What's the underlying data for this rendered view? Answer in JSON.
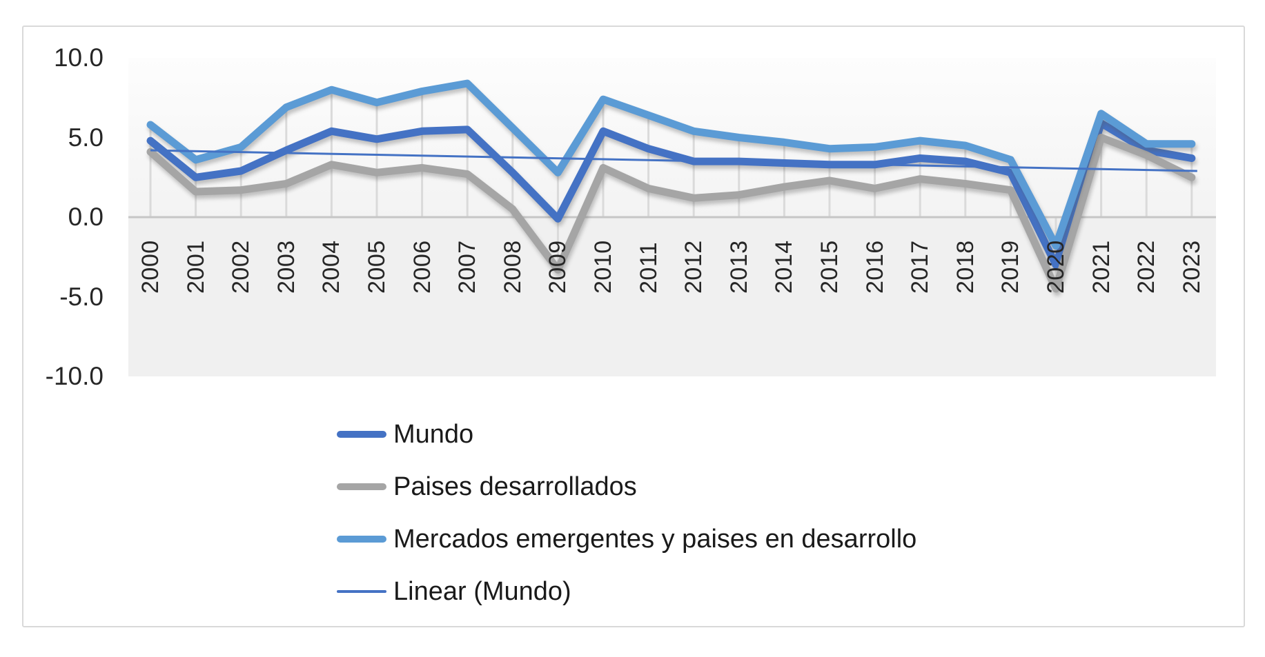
{
  "chart_data": {
    "type": "line",
    "title": "",
    "x": [
      2000,
      2001,
      2002,
      2003,
      2004,
      2005,
      2006,
      2007,
      2008,
      2009,
      2010,
      2011,
      2012,
      2013,
      2014,
      2015,
      2016,
      2017,
      2018,
      2019,
      2020,
      2021,
      2022,
      2023
    ],
    "ylim": [
      -10.0,
      10.0
    ],
    "yticks": [
      {
        "value": 10.0,
        "label": "10.0"
      },
      {
        "value": 5.0,
        "label": "5.0"
      },
      {
        "value": 0.0,
        "label": "0.0"
      },
      {
        "value": -5.0,
        "label": "-5.0"
      },
      {
        "value": -10.0,
        "label": "-10.0"
      }
    ],
    "grid": "vertical-drop-lines",
    "legend_position": "bottom-left",
    "series": [
      {
        "name": "Mundo",
        "color": "#4472C4",
        "line_width": 11,
        "values": [
          4.8,
          2.5,
          2.9,
          4.2,
          5.4,
          4.9,
          5.4,
          5.5,
          2.8,
          -0.1,
          5.4,
          4.3,
          3.5,
          3.5,
          3.4,
          3.3,
          3.3,
          3.7,
          3.5,
          2.8,
          -3.0,
          5.9,
          4.2,
          3.7
        ]
      },
      {
        "name": "Paises desarrollados",
        "color": "#A5A5A5",
        "line_width": 11,
        "values": [
          4.1,
          1.6,
          1.7,
          2.1,
          3.3,
          2.8,
          3.1,
          2.7,
          0.5,
          -3.3,
          3.1,
          1.8,
          1.2,
          1.4,
          1.9,
          2.3,
          1.8,
          2.4,
          2.1,
          1.7,
          -4.5,
          5.0,
          3.9,
          2.5
        ]
      },
      {
        "name": "Mercados emergentes y paises en desarrollo",
        "color": "#5B9BD5",
        "line_width": 11,
        "values": [
          5.8,
          3.6,
          4.4,
          6.9,
          8.0,
          7.2,
          7.9,
          8.4,
          5.6,
          2.8,
          7.4,
          6.4,
          5.4,
          5.0,
          4.7,
          4.3,
          4.4,
          4.8,
          4.5,
          3.6,
          -1.8,
          6.5,
          4.6,
          4.6
        ]
      },
      {
        "name": "Linear (Mundo)",
        "color": "#4472C4",
        "line_width": 3,
        "kind": "trendline",
        "trend_start": 4.2,
        "trend_end": 2.9
      }
    ],
    "colors": {
      "axis_line": "#c6c6c6",
      "drop_line": "#dadada",
      "below_zero_band": "#f0f0f0",
      "frame_border": "#d9d9d9",
      "text": "#262626"
    }
  }
}
